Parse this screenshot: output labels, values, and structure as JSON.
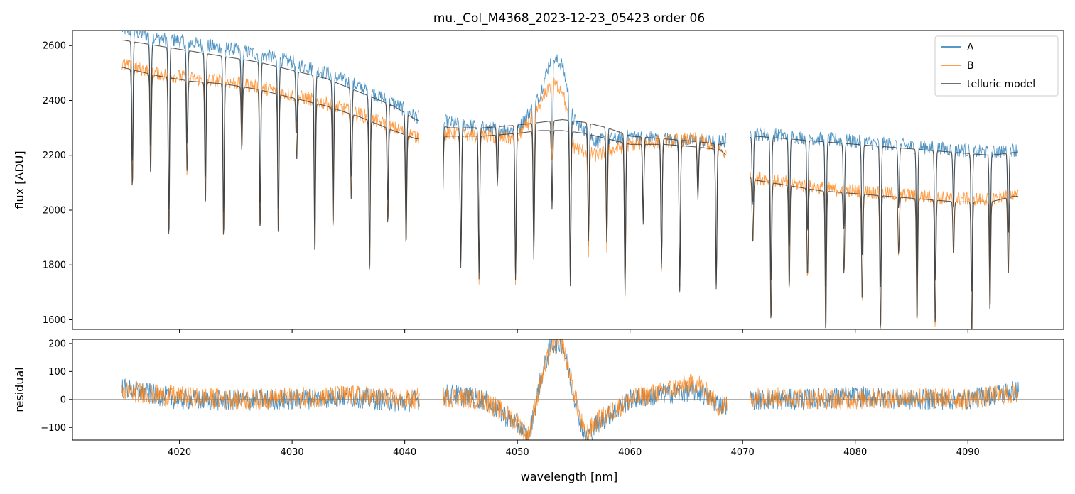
{
  "chart_data": {
    "type": "line",
    "title": "mu._Col_M4368_2023-12-23_05423  order 06",
    "xlabel": "wavelength [nm]",
    "xlim": [
      4010.5,
      4098.5
    ],
    "x_ticks": [
      4020,
      4030,
      4040,
      4050,
      4060,
      4070,
      4080,
      4090
    ],
    "colors": {
      "A": "#1f77b4",
      "B": "#ff7f0e",
      "telluric": "#404040",
      "zero_line": "#808080"
    },
    "legend": {
      "placement": "top-right",
      "entries": [
        "A",
        "B",
        "telluric model"
      ]
    },
    "panels": [
      {
        "name": "flux",
        "ylabel": "flux [ADU]",
        "ylim": [
          1565,
          2655
        ],
        "y_ticks": [
          1600,
          1800,
          2000,
          2200,
          2400,
          2600
        ],
        "segments": [
          [
            4014.9,
            4041.3
          ],
          [
            4043.4,
            4068.6
          ],
          [
            4070.7,
            4094.5
          ]
        ],
        "series": [
          {
            "name": "A",
            "x": [
              4015,
              4018,
              4021,
              4024,
              4027,
              4030,
              4033,
              4036,
              4039,
              4041,
              4044,
              4047,
              4050,
              4052,
              4053,
              4054,
              4055,
              4057,
              4060,
              4063,
              4066,
              4068,
              4071,
              4074,
              4077,
              4080,
              4083,
              4086,
              4089,
              4092,
              4094
            ],
            "y": [
              2660,
              2630,
              2610,
              2590,
              2570,
              2540,
              2500,
              2450,
              2390,
              2340,
              2320,
              2300,
              2290,
              2420,
              2560,
              2530,
              2330,
              2250,
              2270,
              2260,
              2250,
              2250,
              2280,
              2270,
              2260,
              2250,
              2240,
              2230,
              2220,
              2210,
              2220
            ]
          },
          {
            "name": "B",
            "x": [
              4015,
              4018,
              4021,
              4024,
              4027,
              4030,
              4033,
              4036,
              4039,
              4041,
              4044,
              4047,
              4050,
              4052,
              4053,
              4054,
              4055,
              4057,
              4060,
              4063,
              4066,
              4068,
              4071,
              4074,
              4077,
              4080,
              4083,
              4086,
              4089,
              4092,
              4094
            ],
            "y": [
              2530,
              2500,
              2480,
              2470,
              2450,
              2420,
              2390,
              2350,
              2300,
              2270,
              2280,
              2270,
              2260,
              2380,
              2470,
              2440,
              2230,
              2200,
              2240,
              2250,
              2260,
              2220,
              2120,
              2100,
              2080,
              2070,
              2060,
              2050,
              2040,
              2040,
              2060
            ]
          },
          {
            "name": "telluric model",
            "x": [
              4015,
              4018,
              4021,
              4024,
              4027,
              4030,
              4033,
              4036,
              4039,
              4041,
              4044,
              4047,
              4050,
              4052,
              4054,
              4056,
              4058,
              4060,
              4063,
              4066,
              4068,
              4071,
              4074,
              4077,
              4080,
              4083,
              4086,
              4089,
              4092,
              4094
            ],
            "y": [
              2620,
              2600,
              2580,
              2560,
              2540,
              2510,
              2480,
              2430,
              2380,
              2330,
              2300,
              2300,
              2310,
              2320,
              2330,
              2320,
              2300,
              2270,
              2260,
              2250,
              2240,
              2270,
              2260,
              2250,
              2240,
              2230,
              2220,
              2210,
              2200,
              2210
            ]
          },
          {
            "name": "telluric model (B)",
            "x": [
              4015,
              4018,
              4021,
              4024,
              4027,
              4030,
              4033,
              4036,
              4039,
              4041,
              4044,
              4047,
              4050,
              4052,
              4054,
              4056,
              4058,
              4060,
              4063,
              4066,
              4068,
              4071,
              4074,
              4077,
              4080,
              4083,
              4086,
              4089,
              4092,
              4094
            ],
            "y": [
              2520,
              2490,
              2470,
              2460,
              2440,
              2410,
              2380,
              2340,
              2290,
              2260,
              2270,
              2270,
              2280,
              2290,
              2290,
              2280,
              2260,
              2240,
              2240,
              2230,
              2220,
              2110,
              2090,
              2070,
              2060,
              2050,
              2040,
              2030,
              2030,
              2050
            ]
          }
        ]
      },
      {
        "name": "residual",
        "ylabel": "residual",
        "ylim": [
          -145,
          215
        ],
        "y_ticks": [
          -100,
          0,
          100,
          200
        ],
        "zero_line": 0,
        "segments": [
          [
            4014.9,
            4041.3
          ],
          [
            4043.4,
            4068.6
          ],
          [
            4070.7,
            4094.5
          ]
        ],
        "series": [
          {
            "name": "A",
            "x": [
              4015,
              4020,
              4025,
              4030,
              4035,
              4040,
              4044,
              4047,
              4050,
              4051,
              4052,
              4053,
              4054,
              4055,
              4056,
              4057,
              4060,
              4063,
              4066,
              4068,
              4071,
              4075,
              4080,
              4085,
              4090,
              4094
            ],
            "y": [
              40,
              0,
              -5,
              0,
              10,
              -10,
              20,
              0,
              -90,
              -140,
              60,
              200,
              200,
              20,
              -140,
              -90,
              0,
              20,
              30,
              -20,
              0,
              0,
              10,
              0,
              0,
              30
            ]
          },
          {
            "name": "B",
            "x": [
              4015,
              4020,
              4025,
              4030,
              4035,
              4040,
              4044,
              4047,
              4050,
              4051,
              4052,
              4053,
              4054,
              4055,
              4056,
              4057,
              4060,
              4063,
              4066,
              4068,
              4071,
              4075,
              4080,
              4085,
              4090,
              4094
            ],
            "y": [
              30,
              10,
              0,
              5,
              15,
              0,
              10,
              0,
              -80,
              -130,
              50,
              190,
              200,
              30,
              -130,
              -80,
              0,
              30,
              60,
              -30,
              10,
              5,
              0,
              10,
              0,
              20
            ]
          }
        ]
      }
    ]
  }
}
